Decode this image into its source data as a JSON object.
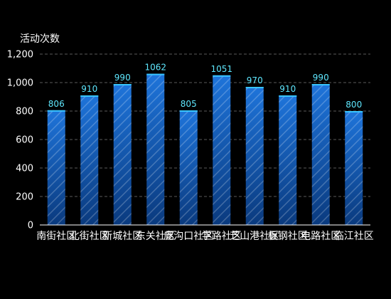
{
  "chart_data": {
    "type": "bar",
    "ylabel": "活动次数",
    "categories": [
      "南街社区",
      "北街社区",
      "新城社区",
      "东关社区",
      "庞沟口社区",
      "学路社区",
      "芝山港社区",
      "板钢社区",
      "电路社区",
      "临江社区"
    ],
    "values": [
      806,
      910,
      990,
      1062,
      805,
      1051,
      970,
      910,
      990,
      800
    ],
    "yticks": [
      "0",
      "200",
      "400",
      "600",
      "800",
      "1,000",
      "1,200"
    ],
    "ylim": [
      0,
      1200
    ],
    "grid": true,
    "colors": {
      "bar_top": "#1e73d8",
      "bar_bottom": "#0b3f86",
      "bar_cap": "#37c5ff",
      "label": "#5fe8ff"
    }
  }
}
